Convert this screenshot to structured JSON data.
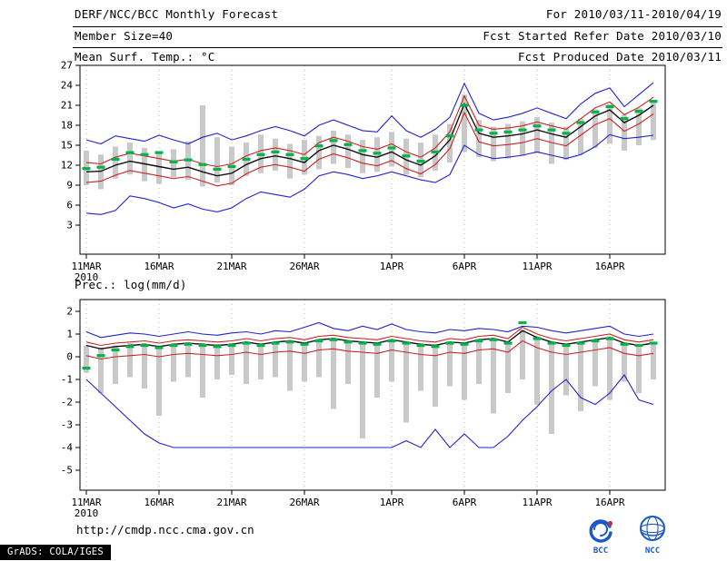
{
  "header": {
    "title": "DERF/NCC/BCC Monthly Forecast",
    "forecast_range": "For 2010/03/11-2010/04/19",
    "member_size": "Member Size=40",
    "fcst_started": "Fcst Started Refer Date 2010/03/10",
    "panel_title": "Mean Surf. Temp.: °C",
    "fcst_produced": "Fcst Produced Date 2010/03/11"
  },
  "x_axis": {
    "year": "2010"
  },
  "footer": {
    "url": "http://cmdp.ncc.cma.gov.cn",
    "grads_credit": "GrADS: COLA/IGES",
    "logos": [
      {
        "label": "BCC"
      },
      {
        "label": "NCC"
      }
    ]
  },
  "colors": {
    "blue_line": "#2222cc",
    "red_line": "#cc2222",
    "mean_line": "#101010",
    "green_marks": "#00b44a",
    "spread_bar": "#c9c9c9"
  },
  "chart_data": [
    {
      "type": "line",
      "title": "Mean Surf. Temp.: °C",
      "ylim": [
        3,
        27
      ],
      "yticks": [
        3,
        6,
        9,
        12,
        15,
        18,
        21,
        24,
        27
      ],
      "x_start": "11MAR2010",
      "x_end": "19APR2010",
      "n_days": 40,
      "x_tick_labels": [
        "11MAR",
        "16MAR",
        "21MAR",
        "26MAR",
        "1APR",
        "6APR",
        "11APR",
        "16APR"
      ],
      "x_tick_days": [
        0,
        5,
        10,
        15,
        21,
        26,
        31,
        36
      ],
      "series": [
        {
          "name": "upper-blue-line",
          "color": "#2222cc",
          "values": [
            15.8,
            15.2,
            16.4,
            16.0,
            15.6,
            16.5,
            15.8,
            15.2,
            16.2,
            16.8,
            15.8,
            16.4,
            17.2,
            17.8,
            17.2,
            16.4,
            18.0,
            18.8,
            18.0,
            17.2,
            17.0,
            19.4,
            17.2,
            16.2,
            17.4,
            19.2,
            24.3,
            19.8,
            18.8,
            19.2,
            19.8,
            20.6,
            19.8,
            19.0,
            21.2,
            22.8,
            23.6,
            20.8,
            22.6,
            24.4
          ]
        },
        {
          "name": "upper-red-line",
          "color": "#cc2222",
          "values": [
            12.4,
            12.2,
            13.2,
            13.8,
            13.4,
            13.0,
            12.6,
            12.9,
            12.2,
            11.8,
            12.2,
            13.4,
            14.2,
            14.6,
            14.2,
            13.6,
            15.4,
            16.2,
            15.6,
            14.8,
            14.4,
            15.2,
            14.0,
            13.2,
            14.6,
            17.0,
            22.4,
            18.0,
            17.4,
            17.6,
            17.9,
            18.5,
            17.9,
            17.4,
            19.0,
            20.6,
            21.5,
            19.6,
            20.7,
            22.2
          ]
        },
        {
          "name": "mean-black-line",
          "color": "#101010",
          "values": [
            11.0,
            11.1,
            12.0,
            12.6,
            12.2,
            11.8,
            11.4,
            11.7,
            11.0,
            10.4,
            10.8,
            12.1,
            13.0,
            13.4,
            13.0,
            12.4,
            14.2,
            15.0,
            14.4,
            13.6,
            13.2,
            14.0,
            12.8,
            12.0,
            13.4,
            15.8,
            21.2,
            16.8,
            16.2,
            16.4,
            16.7,
            17.3,
            16.7,
            16.2,
            17.8,
            19.4,
            20.3,
            18.4,
            19.5,
            21.0
          ]
        },
        {
          "name": "lower-red-line",
          "color": "#cc2222",
          "values": [
            9.4,
            9.6,
            10.5,
            11.2,
            10.8,
            10.4,
            10.0,
            10.3,
            9.6,
            8.9,
            9.3,
            10.7,
            11.7,
            12.1,
            11.7,
            11.1,
            12.9,
            13.7,
            13.1,
            12.3,
            11.9,
            12.7,
            11.5,
            10.7,
            12.1,
            14.5,
            19.9,
            15.5,
            14.9,
            15.1,
            15.4,
            16.0,
            15.4,
            14.9,
            16.5,
            18.1,
            19.0,
            17.1,
            18.2,
            19.7
          ]
        },
        {
          "name": "lower-blue-line",
          "color": "#2222cc",
          "values": [
            4.8,
            4.6,
            5.2,
            7.4,
            7.0,
            6.4,
            5.6,
            6.2,
            5.4,
            5.0,
            5.6,
            7.0,
            8.0,
            7.6,
            7.2,
            8.4,
            10.4,
            11.0,
            10.6,
            10.0,
            10.4,
            11.0,
            10.4,
            9.8,
            9.4,
            10.6,
            15.0,
            13.6,
            13.0,
            13.2,
            13.5,
            14.0,
            13.5,
            13.0,
            13.6,
            14.8,
            16.6,
            16.0,
            16.2,
            16.5
          ]
        },
        {
          "name": "green-median-marks",
          "color": "#00b44a",
          "style": "ticks",
          "values": [
            11.5,
            11.7,
            12.9,
            13.9,
            13.6,
            13.9,
            12.5,
            12.8,
            12.1,
            11.4,
            11.8,
            12.9,
            13.6,
            14.0,
            13.6,
            13.0,
            14.9,
            15.7,
            15.1,
            14.2,
            13.8,
            14.6,
            13.4,
            12.6,
            14.0,
            16.4,
            21.0,
            17.3,
            16.8,
            17.0,
            17.3,
            17.9,
            17.3,
            16.8,
            18.4,
            20.0,
            20.8,
            19.0,
            20.1,
            21.6
          ]
        }
      ],
      "bars": {
        "color": "#c9c9c9",
        "high": [
          14.2,
          13.6,
          14.8,
          15.4,
          14.6,
          13.8,
          14.4,
          15.6,
          21.0,
          16.2,
          14.8,
          15.4,
          16.6,
          16.0,
          15.2,
          15.8,
          16.4,
          17.2,
          16.6,
          15.8,
          16.2,
          17.0,
          16.0,
          15.4,
          16.6,
          18.2,
          22.6,
          18.8,
          17.8,
          18.2,
          18.6,
          19.2,
          18.4,
          17.8,
          19.0,
          20.4,
          21.2,
          19.6,
          20.6,
          21.8
        ],
        "low": [
          9.0,
          8.4,
          10.0,
          10.6,
          9.6,
          9.2,
          10.2,
          9.8,
          8.8,
          9.4,
          9.0,
          10.4,
          10.8,
          11.2,
          10.0,
          10.6,
          11.4,
          12.2,
          11.6,
          10.8,
          11.0,
          11.8,
          10.6,
          10.2,
          11.2,
          12.4,
          14.0,
          13.2,
          12.6,
          13.0,
          13.4,
          13.8,
          12.2,
          12.8,
          13.6,
          14.6,
          15.2,
          14.2,
          15.0,
          15.8
        ]
      }
    },
    {
      "type": "line",
      "title": "Prec.: log(mm/d)",
      "ylim": [
        -5,
        2
      ],
      "yticks": [
        -5,
        -4,
        -3,
        -2,
        -1,
        0,
        1,
        2
      ],
      "x_start": "11MAR2010",
      "x_end": "19APR2010",
      "n_days": 40,
      "x_tick_labels": [
        "11MAR",
        "16MAR",
        "21MAR",
        "26MAR",
        "1APR",
        "6APR",
        "11APR",
        "16APR"
      ],
      "x_tick_days": [
        0,
        5,
        10,
        15,
        21,
        26,
        31,
        36
      ],
      "series": [
        {
          "name": "upper-blue-line",
          "color": "#2222cc",
          "values": [
            1.1,
            0.85,
            0.95,
            1.05,
            1.0,
            0.9,
            1.0,
            1.1,
            1.0,
            0.95,
            1.05,
            1.1,
            1.0,
            1.15,
            1.1,
            1.3,
            1.5,
            1.25,
            1.15,
            1.35,
            1.2,
            1.45,
            1.2,
            1.1,
            1.05,
            1.2,
            1.15,
            1.25,
            1.2,
            1.1,
            1.35,
            1.3,
            1.15,
            1.05,
            1.15,
            1.25,
            1.35,
            1.0,
            0.9,
            1.0
          ]
        },
        {
          "name": "upper-red-line",
          "color": "#cc2222",
          "values": [
            0.65,
            0.5,
            0.6,
            0.65,
            0.7,
            0.6,
            0.7,
            0.75,
            0.7,
            0.65,
            0.7,
            0.8,
            0.7,
            0.8,
            0.85,
            0.75,
            0.9,
            0.95,
            0.85,
            0.8,
            0.75,
            0.9,
            0.8,
            0.7,
            0.65,
            0.8,
            0.75,
            0.9,
            0.95,
            0.8,
            1.3,
            1.0,
            0.8,
            0.7,
            0.8,
            0.9,
            1.0,
            0.75,
            0.65,
            0.75
          ]
        },
        {
          "name": "mean-black-line",
          "color": "#101010",
          "values": [
            0.5,
            0.35,
            0.45,
            0.5,
            0.55,
            0.45,
            0.55,
            0.6,
            0.55,
            0.5,
            0.55,
            0.65,
            0.55,
            0.65,
            0.7,
            0.6,
            0.75,
            0.8,
            0.7,
            0.65,
            0.6,
            0.75,
            0.65,
            0.55,
            0.5,
            0.65,
            0.6,
            0.75,
            0.8,
            0.65,
            1.15,
            0.85,
            0.65,
            0.55,
            0.65,
            0.75,
            0.85,
            0.6,
            0.5,
            0.6
          ]
        },
        {
          "name": "lower-red-line",
          "color": "#cc2222",
          "values": [
            0.05,
            -0.1,
            0.0,
            0.05,
            0.1,
            0.0,
            0.1,
            0.15,
            0.1,
            0.05,
            0.1,
            0.2,
            0.1,
            0.2,
            0.25,
            0.15,
            0.3,
            0.35,
            0.25,
            0.2,
            0.15,
            0.3,
            0.2,
            0.1,
            0.05,
            0.2,
            0.15,
            0.3,
            0.35,
            0.2,
            0.7,
            0.4,
            0.2,
            0.1,
            0.2,
            0.3,
            0.4,
            0.15,
            0.05,
            0.15
          ]
        },
        {
          "name": "lower-blue-line",
          "color": "#2222cc",
          "values": [
            -1.0,
            -1.6,
            -2.2,
            -2.8,
            -3.4,
            -3.8,
            -4.0,
            -4.0,
            -4.0,
            -4.0,
            -4.0,
            -4.0,
            -4.0,
            -4.0,
            -4.0,
            -4.0,
            -4.0,
            -4.0,
            -4.0,
            -4.0,
            -4.0,
            -4.0,
            -3.7,
            -4.0,
            -3.2,
            -4.0,
            -3.4,
            -4.0,
            -4.0,
            -3.5,
            -2.8,
            -2.2,
            -1.5,
            -1.0,
            -1.8,
            -2.1,
            -1.6,
            -0.8,
            -1.9,
            -2.1
          ]
        },
        {
          "name": "green-median-marks",
          "color": "#00b44a",
          "style": "ticks",
          "values": [
            -0.5,
            0.05,
            0.3,
            0.45,
            0.5,
            0.4,
            0.5,
            0.55,
            0.5,
            0.45,
            0.5,
            0.6,
            0.5,
            0.6,
            0.65,
            0.55,
            0.7,
            0.75,
            0.65,
            0.6,
            0.55,
            0.7,
            0.6,
            0.5,
            0.45,
            0.6,
            0.55,
            0.7,
            0.75,
            0.6,
            1.5,
            0.8,
            0.6,
            0.5,
            0.6,
            0.7,
            0.8,
            0.55,
            0.5,
            0.6
          ]
        }
      ],
      "bars": {
        "color": "#c9c9c9",
        "high": [
          0.5,
          0.4,
          0.5,
          0.6,
          0.6,
          0.5,
          0.6,
          0.65,
          0.6,
          0.55,
          0.6,
          0.7,
          0.6,
          0.7,
          0.75,
          0.65,
          0.8,
          0.85,
          0.75,
          0.7,
          0.65,
          0.8,
          0.7,
          0.6,
          0.55,
          0.7,
          0.65,
          0.8,
          0.85,
          0.7,
          1.2,
          0.9,
          0.7,
          0.6,
          0.7,
          0.8,
          0.9,
          0.65,
          0.55,
          0.65
        ],
        "low": [
          -0.7,
          -1.6,
          -1.2,
          -0.9,
          -1.4,
          -2.6,
          -1.1,
          -0.9,
          -1.8,
          -1.0,
          -0.8,
          -1.2,
          -1.0,
          -0.9,
          -1.5,
          -1.1,
          -0.9,
          -2.3,
          -1.2,
          -3.6,
          -1.8,
          -1.1,
          -2.9,
          -1.5,
          -2.2,
          -1.3,
          -1.9,
          -1.2,
          -2.5,
          -1.6,
          -1.0,
          -2.1,
          -3.4,
          -1.7,
          -2.4,
          -1.3,
          -1.9,
          -1.1,
          -1.6,
          -1.0
        ]
      }
    }
  ]
}
